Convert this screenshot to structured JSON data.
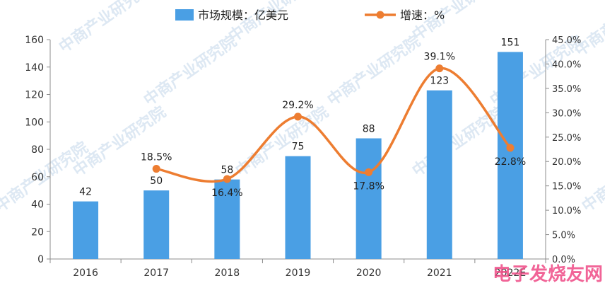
{
  "chart_data": {
    "type": "bar",
    "categories": [
      "2016",
      "2017",
      "2018",
      "2019",
      "2020",
      "2021",
      "2022E"
    ],
    "series": [
      {
        "name": "市场规模：亿美元",
        "type": "bar",
        "axis": "left",
        "values": [
          42,
          50,
          58,
          75,
          88,
          123,
          151
        ],
        "labels": [
          "42",
          "50",
          "58",
          "75",
          "88",
          "123",
          "151"
        ],
        "color": "#4a9fe4"
      },
      {
        "name": "增速：%",
        "type": "line",
        "axis": "right",
        "values": [
          null,
          18.5,
          16.4,
          29.2,
          17.8,
          39.1,
          22.8
        ],
        "labels": [
          "",
          "18.5%",
          "16.4%",
          "29.2%",
          "17.8%",
          "39.1%",
          "22.8%"
        ],
        "color": "#ed7d31"
      }
    ],
    "y_left": {
      "min": 0,
      "max": 160,
      "ticks": [
        0,
        20,
        40,
        60,
        80,
        100,
        120,
        140,
        160
      ],
      "tick_labels": [
        "0",
        "20",
        "40",
        "60",
        "80",
        "100",
        "120",
        "140",
        "160"
      ]
    },
    "y_right": {
      "min": 0,
      "max": 45,
      "ticks": [
        0,
        5,
        10,
        15,
        20,
        25,
        30,
        35,
        40,
        45
      ],
      "tick_labels": [
        "0.0%",
        "5.0%",
        "10.0%",
        "15.0%",
        "20.0%",
        "25.0%",
        "30.0%",
        "35.0%",
        "40.0%",
        "45.0%"
      ]
    },
    "legend": {
      "position": "top"
    },
    "grid": false
  },
  "watermark": "中商产业研究院",
  "corner_logo": "电子发烧友网"
}
